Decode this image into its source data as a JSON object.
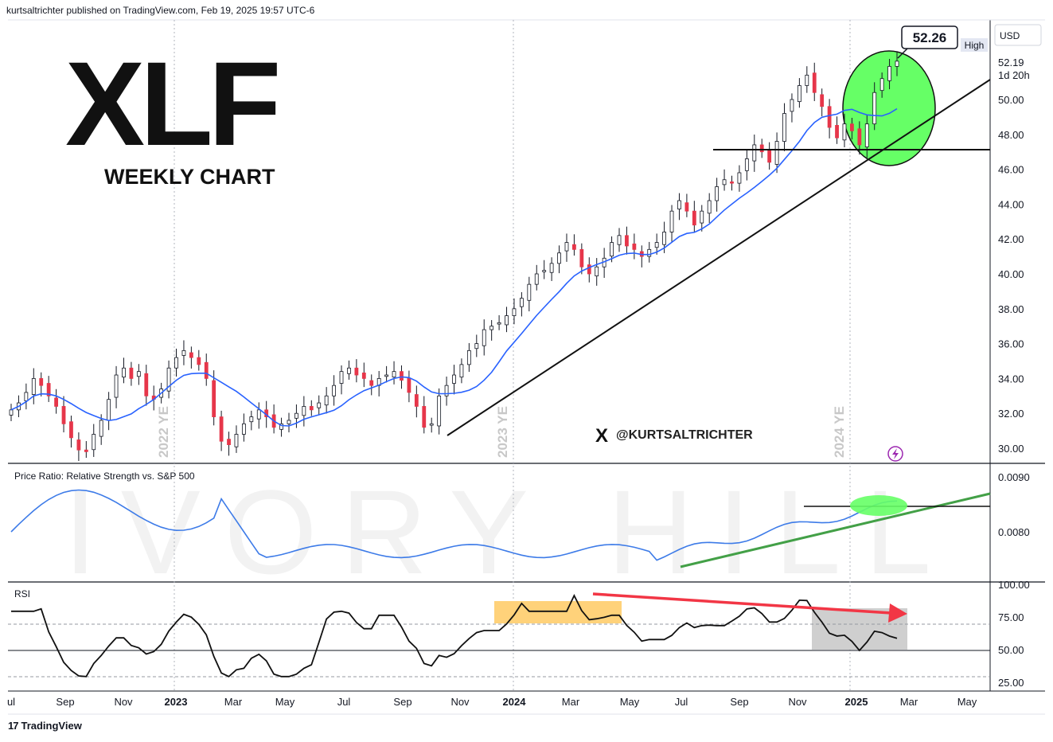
{
  "header": {
    "published_by": "kurtsaltrichter published on TradingView.com, Feb 19, 2025 19:57 UTC-6"
  },
  "overlay": {
    "symbol": "XLF",
    "subtitle": "WEEKLY CHART",
    "handle": "@KURTSALTRICHTER",
    "watermark": "IVORY HILL",
    "ye_labels": [
      "2022 YE",
      "2023 YE",
      "2024 YE"
    ]
  },
  "price_panel": {
    "currency": "USD",
    "high_label": "High",
    "high_value": "52.26",
    "last_value": "52.19",
    "countdown": "1d 20h",
    "y_ticks": [
      "50.00",
      "48.00",
      "46.00",
      "44.00",
      "42.00",
      "40.00",
      "38.00",
      "36.00",
      "34.00",
      "32.00",
      "30.00"
    ]
  },
  "ratio_panel": {
    "title": "Price Ratio: Relative Strength vs. S&P 500",
    "y_ticks": [
      "0.0090",
      "0.0080"
    ]
  },
  "rsi_panel": {
    "title": "RSI",
    "y_ticks": [
      "100.00",
      "75.00",
      "50.00",
      "25.00"
    ]
  },
  "x_axis": {
    "labels": [
      "ul",
      "Sep",
      "Nov",
      "2023",
      "Mar",
      "May",
      "Jul",
      "Sep",
      "Nov",
      "2024",
      "Mar",
      "May",
      "Jul",
      "Sep",
      "Nov",
      "2025",
      "Mar",
      "May"
    ]
  },
  "footer": {
    "brand": "TradingView"
  },
  "colors": {
    "up": "#ffffff",
    "down": "#e6364a",
    "ma": "#2962ff",
    "ratio_line": "#3d7be8",
    "green_fill": "#4dff4d",
    "green_trend": "#43a047",
    "red_arrow": "#f23645",
    "orange_box": "#ffd27a",
    "gray_box": "#cfcfcf"
  },
  "chart_data": {
    "type": "candlestick",
    "title": "XLF",
    "subtitle": "WEEKLY CHART",
    "ylim": [
      29.5,
      53.5
    ],
    "x_start": "2022-07-25",
    "weekly_closes": [
      32.2,
      32.6,
      33.2,
      34.0,
      33.6,
      33.0,
      32.4,
      31.4,
      30.6,
      29.9,
      29.8,
      30.8,
      31.6,
      32.8,
      34.2,
      34.6,
      34.0,
      34.4,
      33.0,
      32.8,
      33.4,
      34.6,
      35.2,
      35.6,
      35.2,
      34.8,
      34.0,
      31.8,
      30.4,
      30.2,
      30.8,
      31.4,
      31.8,
      32.2,
      31.8,
      31.2,
      31.4,
      31.6,
      32.0,
      32.4,
      32.2,
      32.6,
      33.0,
      33.6,
      34.4,
      34.6,
      34.2,
      34.0,
      33.6,
      34.0,
      34.2,
      34.4,
      33.9,
      33.2,
      32.4,
      31.2,
      31.4,
      33.0,
      33.6,
      34.2,
      34.8,
      35.6,
      36.0,
      36.8,
      37.0,
      37.2,
      37.6,
      38.0,
      38.6,
      39.4,
      40.0,
      40.2,
      40.6,
      41.2,
      41.8,
      41.4,
      40.4,
      40.0,
      40.4,
      40.9,
      41.8,
      42.2,
      41.6,
      41.4,
      41.0,
      41.4,
      41.8,
      42.4,
      43.6,
      44.2,
      43.6,
      42.8,
      43.6,
      44.2,
      45.0,
      45.4,
      45.2,
      45.8,
      46.6,
      47.4,
      47.0,
      46.4,
      47.6,
      49.2,
      50.0,
      50.8,
      51.4,
      50.4,
      49.6,
      48.4,
      47.8,
      48.6,
      48.2,
      47.4,
      48.6,
      50.4,
      51.2,
      51.9,
      52.2
    ],
    "moving_average": "blue line (approx 10-week)",
    "annotations": {
      "horizontal_support": 47.0,
      "ath_high": 52.26
    },
    "ratio": {
      "name": "Price Ratio: Relative Strength vs. S&P 500",
      "ylim": [
        0.0073,
        0.0092
      ]
    },
    "rsi": {
      "name": "RSI",
      "ylim": [
        20,
        100
      ],
      "levels": [
        70,
        50,
        30
      ]
    }
  }
}
